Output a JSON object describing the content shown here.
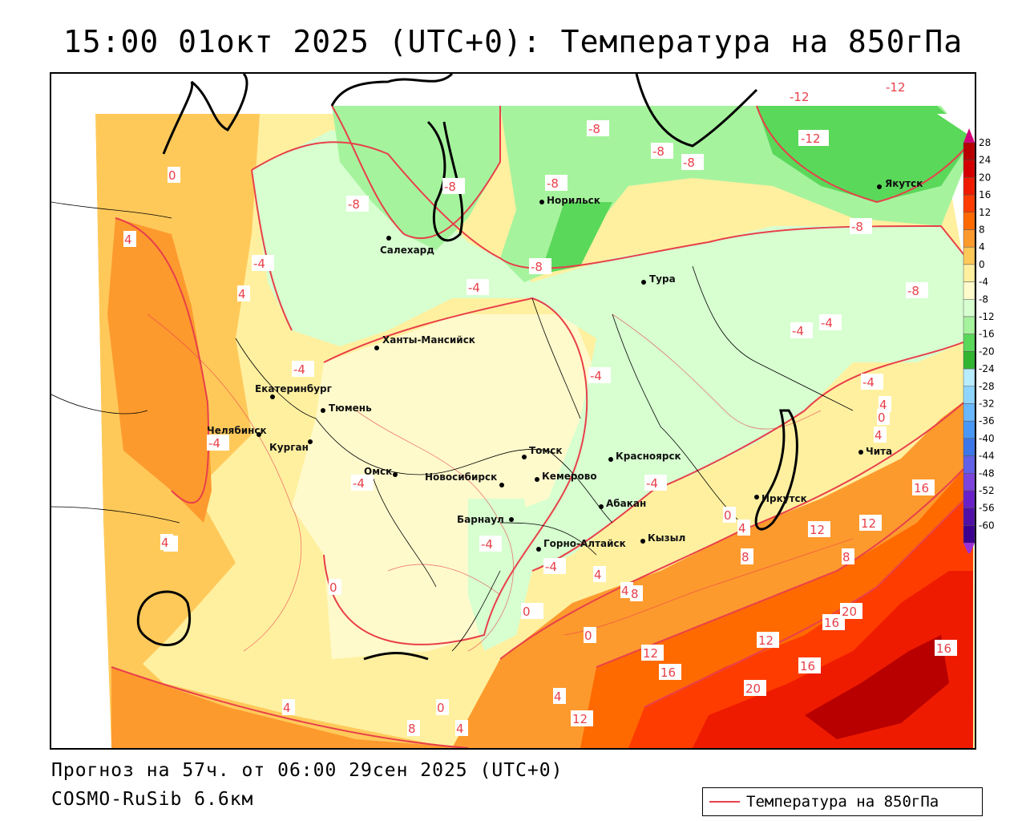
{
  "title": "15:00 01окт 2025 (UTC+0): Температура на 850гПа",
  "footer": {
    "forecast": "Прогноз на 57ч. от 06:00 29сен 2025 (UTC+0)",
    "model": "COSMO-RuSib 6.6км"
  },
  "legend": {
    "label": "Температура на 850гПа",
    "line_color": "#e8404a"
  },
  "colorbar": {
    "labels": [
      "28",
      "24",
      "20",
      "16",
      "12",
      "8",
      "4",
      "0",
      "-4",
      "-8",
      "-12",
      "-16",
      "-20",
      "-24",
      "-28",
      "-32",
      "-36",
      "-40",
      "-44",
      "-48",
      "-52",
      "-56",
      "-60"
    ],
    "colors": [
      "#b80000",
      "#d40000",
      "#ef1b00",
      "#ff3c00",
      "#ff6a00",
      "#fd9a2e",
      "#ffc95a",
      "#fff0a0",
      "#fffacc",
      "#d7ffd0",
      "#a6f39e",
      "#5ad85a",
      "#31b531",
      "#b8ecff",
      "#8ed6ff",
      "#6ab8ff",
      "#4a98f5",
      "#3c77ea",
      "#6060e8",
      "#7c44dd",
      "#6a20c8",
      "#5010a8",
      "#3c0090"
    ]
  },
  "cities": [
    {
      "name": "Якутск"
    },
    {
      "name": "Норильск"
    },
    {
      "name": "Салехард"
    },
    {
      "name": "Тура"
    },
    {
      "name": "Ханты-Мансийск"
    },
    {
      "name": "Екатеринбург"
    },
    {
      "name": "Тюмень"
    },
    {
      "name": "Челябинск"
    },
    {
      "name": "Курган"
    },
    {
      "name": "Омск"
    },
    {
      "name": "Новосибирск"
    },
    {
      "name": "Томск"
    },
    {
      "name": "Кемерово"
    },
    {
      "name": "Красноярск"
    },
    {
      "name": "Барнаул"
    },
    {
      "name": "Абакан"
    },
    {
      "name": "Иркутск"
    },
    {
      "name": "Чита"
    },
    {
      "name": "Горно-Алтайск"
    },
    {
      "name": "Кызыл"
    }
  ],
  "contour_labels": [
    "-12",
    "-12",
    "-12",
    "-8",
    "-8",
    "-8",
    "-8",
    "-8",
    "-8",
    "-8",
    "-8",
    "-8",
    "0",
    "4",
    "-4",
    "4",
    "-4",
    "-4",
    "-4",
    "-4",
    "-4",
    "-4",
    "-4",
    "-4",
    "4",
    "0",
    "4",
    "16",
    "12",
    "12",
    "8",
    "8",
    "0",
    "4",
    "4",
    "8",
    "12",
    "16",
    "20",
    "12",
    "16",
    "16",
    "20",
    "16",
    "4",
    "0",
    "-4",
    "4",
    "0",
    "-4",
    "4",
    "12",
    "8",
    "4",
    "0",
    "4",
    "-4",
    "0",
    "4",
    "4"
  ]
}
